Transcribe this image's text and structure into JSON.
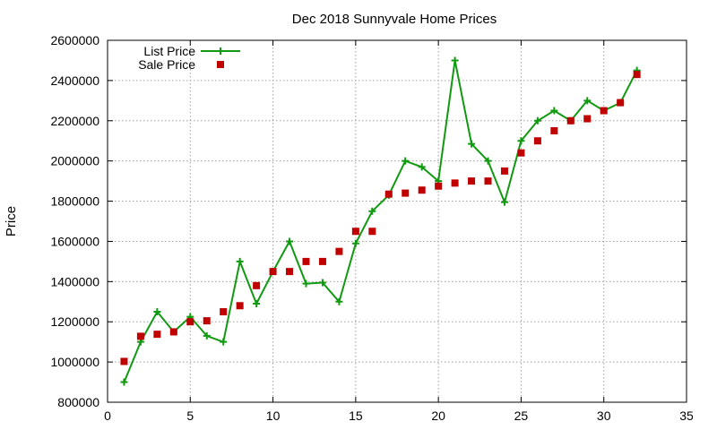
{
  "chart_data": {
    "type": "line",
    "title": "Dec 2018 Sunnyvale Home Prices",
    "xlabel": "",
    "ylabel": "Price",
    "xlim": [
      0,
      35
    ],
    "ylim": [
      800000,
      2600000
    ],
    "xticks": [
      0,
      5,
      10,
      15,
      20,
      25,
      30,
      35
    ],
    "yticks": [
      800000,
      1000000,
      1200000,
      1400000,
      1600000,
      1800000,
      2000000,
      2200000,
      2400000,
      2600000
    ],
    "grid": true,
    "legend_position": "top-left",
    "series": [
      {
        "name": "List Price",
        "style": "line-plus",
        "color": "#119911",
        "x": [
          1,
          2,
          3,
          4,
          5,
          6,
          7,
          8,
          9,
          10,
          11,
          12,
          13,
          14,
          15,
          16,
          17,
          18,
          19,
          20,
          21,
          22,
          23,
          24,
          25,
          26,
          27,
          28,
          29,
          30,
          31,
          32
        ],
        "values": [
          900000,
          1100000,
          1250000,
          1150000,
          1225000,
          1130000,
          1100000,
          1500000,
          1290000,
          1450000,
          1600000,
          1390000,
          1395000,
          1300000,
          1590000,
          1750000,
          1830000,
          2000000,
          1970000,
          1900000,
          2500000,
          2085000,
          2000000,
          1795000,
          2100000,
          2200000,
          2250000,
          2200000,
          2300000,
          2250000,
          2290000,
          2450000
        ]
      },
      {
        "name": "Sale Price",
        "style": "square",
        "color": "#c00000",
        "x": [
          1,
          2,
          3,
          4,
          5,
          6,
          7,
          8,
          9,
          10,
          11,
          12,
          13,
          14,
          15,
          16,
          17,
          18,
          19,
          20,
          21,
          22,
          23,
          24,
          25,
          26,
          27,
          28,
          29,
          30,
          31,
          32
        ],
        "values": [
          1003000,
          1128000,
          1138000,
          1150000,
          1200000,
          1205000,
          1250000,
          1280000,
          1380000,
          1450000,
          1450000,
          1500000,
          1500000,
          1550000,
          1650000,
          1650000,
          1835000,
          1840000,
          1855000,
          1875000,
          1890000,
          1900000,
          1900000,
          1950000,
          2040000,
          2100000,
          2150000,
          2200000,
          2210000,
          2250000,
          2290000,
          2430000
        ]
      }
    ]
  }
}
